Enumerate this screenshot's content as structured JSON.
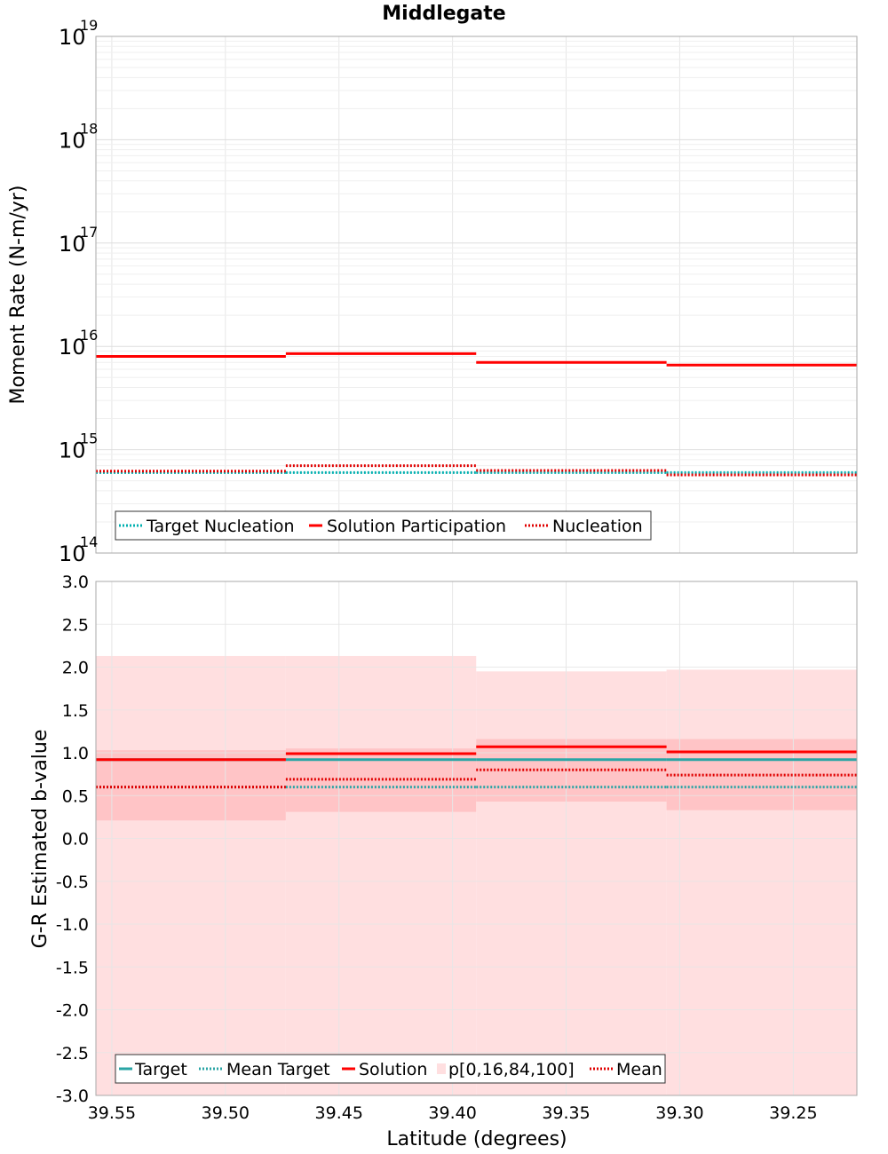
{
  "chart_data": [
    {
      "type": "line",
      "title": "Middlegate",
      "ylabel": "Moment Rate (N-m/yr)",
      "yscale": "log",
      "ylim": [
        100000000000000.0,
        1e+19
      ],
      "xlim": [
        39.557,
        39.222
      ],
      "x_reversed": true,
      "y_ticks": [
        {
          "base": "10",
          "exp": "14",
          "value": 14
        },
        {
          "base": "10",
          "exp": "15",
          "value": 15
        },
        {
          "base": "10",
          "exp": "16",
          "value": 16
        },
        {
          "base": "10",
          "exp": "17",
          "value": 17
        },
        {
          "base": "10",
          "exp": "18",
          "value": 18
        },
        {
          "base": "10",
          "exp": "19",
          "value": 19
        }
      ],
      "bin_edges": [
        39.557,
        39.4734,
        39.3896,
        39.3058,
        39.222
      ],
      "series": [
        {
          "name": "Target Nucleation",
          "style": "dotted",
          "color": "#00b0b0",
          "values": [
            600000000000000.0,
            600000000000000.0,
            600000000000000.0,
            600000000000000.0
          ]
        },
        {
          "name": "Solution Participation",
          "style": "solid",
          "color": "#ff0000",
          "values": [
            8000000000000000.0,
            8500000000000000.0,
            7000000000000000.0,
            6600000000000000.0
          ]
        },
        {
          "name": "Nucleation",
          "style": "dotted",
          "color": "#e00000",
          "values": [
            620000000000000.0,
            700000000000000.0,
            630000000000000.0,
            570000000000000.0
          ]
        }
      ],
      "legend": {
        "labels": [
          "Target Nucleation",
          "Solution Participation",
          "Nucleation"
        ],
        "placement": "bottom-left"
      }
    },
    {
      "type": "line",
      "ylabel": "G-R Estimated b-value",
      "xlabel": "Latitude (degrees)",
      "ylim": [
        -3.0,
        3.0
      ],
      "xlim": [
        39.557,
        39.222
      ],
      "x_reversed": true,
      "y_ticks": [
        "3.0",
        "2.5",
        "2.0",
        "1.5",
        "1.0",
        "0.5",
        "0.0",
        "-0.5",
        "-1.0",
        "-1.5",
        "-2.0",
        "-2.5",
        "-3.0"
      ],
      "x_ticks": [
        "39.55",
        "39.50",
        "39.45",
        "39.40",
        "39.35",
        "39.30",
        "39.25"
      ],
      "bin_edges": [
        39.557,
        39.4734,
        39.3896,
        39.3058,
        39.222
      ],
      "bands": {
        "name": "p[0,16,84,100]",
        "p0": [
          -3.0,
          -3.0,
          -3.0,
          -3.0
        ],
        "p100": [
          2.13,
          2.13,
          1.95,
          1.97
        ],
        "p16": [
          0.21,
          0.31,
          0.43,
          0.33
        ],
        "p84": [
          1.03,
          1.05,
          1.16,
          1.16
        ]
      },
      "series": [
        {
          "name": "Target",
          "style": "solid",
          "color": "#2aa5a5",
          "values": [
            0.92,
            0.92,
            0.92,
            0.92
          ]
        },
        {
          "name": "Mean Target",
          "style": "dotted",
          "color": "#2aa5a5",
          "values": [
            0.6,
            0.6,
            0.6,
            0.6
          ]
        },
        {
          "name": "Solution",
          "style": "solid",
          "color": "#ff0000",
          "values": [
            0.92,
            0.99,
            1.07,
            1.01
          ]
        },
        {
          "name": "Mean",
          "style": "dotted",
          "color": "#e00000",
          "values": [
            0.6,
            0.69,
            0.8,
            0.74
          ]
        }
      ],
      "legend": {
        "labels": [
          "Target",
          "Mean Target",
          "Solution",
          "p[0,16,84,100]",
          "Mean"
        ],
        "placement": "bottom-left"
      }
    }
  ]
}
